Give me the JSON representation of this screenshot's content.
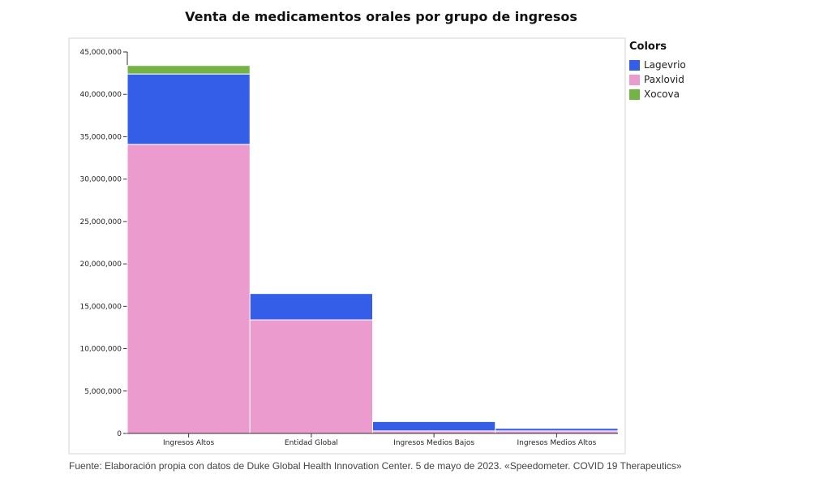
{
  "chart_data": {
    "type": "bar",
    "stacked": true,
    "title": "Venta de medicamentos orales por grupo de ingresos",
    "categories": [
      "Ingresos Altos",
      "Entidad Global",
      "Ingresos Medios Bajos",
      "Ingresos Medios Altos"
    ],
    "series": [
      {
        "name": "Paxlovid",
        "color": "#ec9bcf",
        "values": [
          34100000,
          13400000,
          300000,
          300000
        ]
      },
      {
        "name": "Lagevrio",
        "color": "#355ee8",
        "values": [
          8300000,
          3100000,
          1100000,
          300000
        ]
      },
      {
        "name": "Xocova",
        "color": "#74b446",
        "values": [
          1000000,
          0,
          0,
          0
        ]
      }
    ],
    "ylim": [
      0,
      45000000
    ],
    "yticks": [
      "0",
      "5,000,000",
      "10,000,000",
      "15,000,000",
      "20,000,000",
      "25,000,000",
      "30,000,000",
      "35,000,000",
      "40,000,000",
      "45,000,000"
    ],
    "ytick_values": [
      0,
      5000000,
      10000000,
      15000000,
      20000000,
      25000000,
      30000000,
      35000000,
      40000000,
      45000000
    ],
    "xlabel": "",
    "ylabel": "",
    "legend": {
      "title": "Colors",
      "position": "right",
      "items": [
        {
          "name": "Lagevrio",
          "color": "#355ee8"
        },
        {
          "name": "Paxlovid",
          "color": "#ec9bcf"
        },
        {
          "name": "Xocova",
          "color": "#74b446"
        }
      ]
    },
    "grid": false
  },
  "footer": "Fuente: Elaboración propia con datos de Duke Global Health Innovation Center. 5 de mayo de 2023. «Speedometer. COVID 19 Therapeutics»"
}
